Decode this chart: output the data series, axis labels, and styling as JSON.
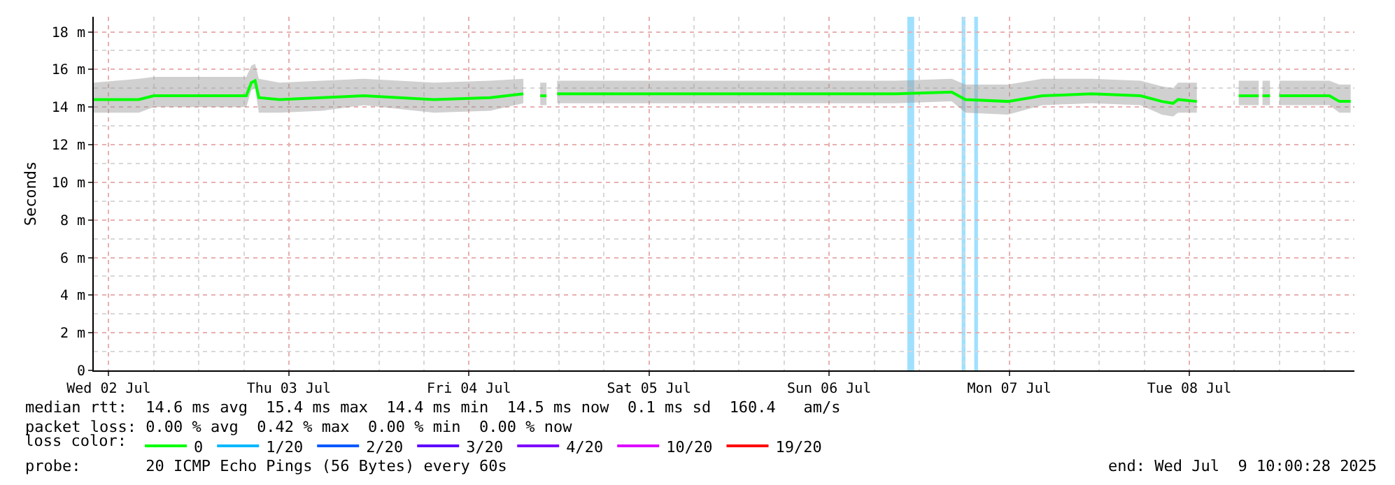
{
  "chart_data": {
    "type": "line",
    "ylabel": "Seconds",
    "x": [
      "2025-07-02T10:00",
      "2025-07-02T16:00",
      "2025-07-02T18:00",
      "2025-07-03T06:20",
      "2025-07-03T07:00",
      "2025-07-03T07:30",
      "2025-07-03T08:00",
      "2025-07-03T10:45",
      "2025-07-03T16:25",
      "2025-07-03T22:00",
      "2025-07-04T07:20",
      "2025-07-04T14:50",
      "2025-07-04T19:15",
      "2025-07-04T20:30",
      "2025-07-04T21:30",
      "2025-07-04T22:20",
      "2025-07-04T22:50",
      "2025-07-04T23:45",
      "2025-07-05T18:50",
      "2025-07-06T20:55",
      "2025-07-07T04:20",
      "2025-07-07T06:10",
      "2025-07-07T11:50",
      "2025-07-07T16:25",
      "2025-07-07T23:00",
      "2025-07-08T05:30",
      "2025-07-08T08:20",
      "2025-07-08T09:50",
      "2025-07-08T10:30",
      "2025-07-08T13:00",
      "2025-07-08T15:40",
      "2025-07-08T18:35",
      "2025-07-08T21:15",
      "2025-07-08T21:30",
      "2025-07-08T21:45",
      "2025-07-08T22:45",
      "2025-07-08T23:15",
      "2025-07-09T00:00",
      "2025-07-09T06:40",
      "2025-07-09T08:00",
      "2025-07-09T09:30"
    ],
    "series": [
      {
        "name": "0",
        "color": "#00ff00",
        "values": [
          14.4,
          14.4,
          14.6,
          14.6,
          15.3,
          15.4,
          14.5,
          14.4,
          14.5,
          14.6,
          14.4,
          14.5,
          14.7,
          null,
          14.6,
          14.6,
          null,
          14.7,
          14.7,
          14.7,
          14.8,
          14.4,
          14.3,
          14.6,
          14.7,
          14.6,
          14.3,
          14.2,
          14.4,
          14.3,
          null,
          14.6,
          14.6,
          null,
          14.6,
          14.6,
          null,
          14.6,
          14.6,
          14.3,
          14.3
        ],
        "lower": [
          13.7,
          13.7,
          14.0,
          14.0,
          14.9,
          15.0,
          13.7,
          13.7,
          13.8,
          14.1,
          13.7,
          13.8,
          14.2,
          null,
          14.1,
          14.1,
          null,
          14.2,
          14.2,
          14.2,
          14.3,
          13.7,
          13.6,
          14.1,
          14.2,
          14.1,
          13.6,
          13.5,
          13.7,
          13.7,
          null,
          14.1,
          14.1,
          null,
          14.1,
          14.1,
          null,
          14.1,
          14.1,
          13.7,
          13.7
        ],
        "upper": [
          15.3,
          15.5,
          15.6,
          15.6,
          16.2,
          16.3,
          15.5,
          15.3,
          15.4,
          15.5,
          15.3,
          15.4,
          15.5,
          null,
          15.3,
          15.3,
          null,
          15.4,
          15.4,
          15.4,
          15.5,
          15.2,
          15.2,
          15.5,
          15.5,
          15.4,
          15.1,
          15.0,
          15.3,
          15.3,
          null,
          15.4,
          15.4,
          null,
          15.4,
          15.4,
          null,
          15.4,
          15.4,
          15.2,
          15.2
        ]
      },
      {
        "name": "1/20",
        "color": "#00b8ff",
        "values": [
          null,
          null,
          null,
          null,
          null,
          null,
          null,
          null,
          null,
          null,
          null,
          null,
          null,
          null,
          null,
          null,
          null,
          null,
          null,
          null,
          null,
          null,
          null,
          null,
          null,
          null,
          null,
          null,
          null,
          null,
          null,
          null,
          null,
          null,
          null,
          null,
          null,
          null,
          null,
          null,
          null
        ]
      },
      {
        "name": "2/20",
        "color": "#0059ff",
        "values": [
          null,
          null,
          null,
          null,
          null,
          null,
          null,
          null,
          null,
          null,
          null,
          null,
          null,
          null,
          null,
          null,
          null,
          null,
          null,
          null,
          null,
          null,
          null,
          null,
          null,
          null,
          null,
          null,
          null,
          null,
          null,
          null,
          null,
          null,
          null,
          null,
          null,
          null,
          null,
          null,
          null
        ]
      },
      {
        "name": "3/20",
        "color": "#5e00ff",
        "values": [
          null,
          null,
          null,
          null,
          null,
          null,
          null,
          null,
          null,
          null,
          null,
          null,
          null,
          null,
          null,
          null,
          null,
          null,
          null,
          null,
          null,
          null,
          null,
          null,
          null,
          null,
          null,
          null,
          null,
          null,
          null,
          null,
          null,
          null,
          null,
          null,
          null,
          null,
          null,
          null,
          null
        ]
      },
      {
        "name": "4/20",
        "color": "#7e00ff",
        "values": [
          null,
          null,
          null,
          null,
          null,
          null,
          null,
          null,
          null,
          null,
          null,
          null,
          null,
          null,
          null,
          null,
          null,
          null,
          null,
          null,
          null,
          null,
          null,
          null,
          null,
          null,
          null,
          null,
          null,
          null,
          null,
          null,
          null,
          null,
          null,
          null,
          null,
          null,
          null,
          null,
          null
        ]
      },
      {
        "name": "10/20",
        "color": "#dd00ff",
        "values": [
          null,
          null,
          null,
          null,
          null,
          null,
          null,
          null,
          null,
          null,
          null,
          null,
          null,
          null,
          null,
          null,
          null,
          null,
          null,
          null,
          null,
          null,
          null,
          null,
          null,
          null,
          null,
          null,
          null,
          null,
          null,
          null,
          null,
          null,
          null,
          null,
          null,
          null,
          null,
          null,
          null
        ]
      },
      {
        "name": "19/20",
        "color": "#ff0000",
        "values": [
          null,
          null,
          null,
          null,
          null,
          null,
          null,
          null,
          null,
          null,
          null,
          null,
          null,
          null,
          null,
          null,
          null,
          null,
          null,
          null,
          null,
          null,
          null,
          null,
          null,
          null,
          null,
          null,
          null,
          null,
          null,
          null,
          null,
          null,
          null,
          null,
          null,
          null,
          null,
          null,
          null
        ]
      }
    ],
    "bands": [
      {
        "axis": "x",
        "from": "2025-07-06T22:25",
        "to": "2025-07-06T23:20",
        "label": null,
        "color": "#a0e0ff"
      },
      {
        "axis": "x",
        "from": "2025-07-07T05:40",
        "to": "2025-07-07T06:10",
        "label": null,
        "color": "#a0e0ff"
      },
      {
        "axis": "x",
        "from": "2025-07-07T07:20",
        "to": "2025-07-07T07:50",
        "label": null,
        "color": "#a0e0ff"
      }
    ],
    "xlim": [
      "2025-07-02T10:00",
      "2025-07-09T10:00"
    ],
    "xticks": [
      {
        "value": "2025-07-02T12:00",
        "label": "Wed 02 Jul"
      },
      {
        "value": "2025-07-03T12:00",
        "label": "Thu 03 Jul"
      },
      {
        "value": "2025-07-04T12:00",
        "label": "Fri 04 Jul"
      },
      {
        "value": "2025-07-05T12:00",
        "label": "Sat 05 Jul"
      },
      {
        "value": "2025-07-06T12:00",
        "label": "Sun 06 Jul"
      },
      {
        "value": "2025-07-07T12:00",
        "label": "Mon 07 Jul"
      },
      {
        "value": "2025-07-08T12:00",
        "label": "Tue 08 Jul"
      }
    ],
    "ylim": [
      0,
      18.8
    ],
    "yticks": [
      0,
      {
        "value": 2,
        "label": "2 m"
      },
      {
        "value": 4,
        "label": "4 m"
      },
      {
        "value": 6,
        "label": "6 m"
      },
      {
        "value": 8,
        "label": "8 m"
      },
      {
        "value": 10,
        "label": "10 m"
      },
      {
        "value": 12,
        "label": "12 m"
      },
      {
        "value": 14,
        "label": "14 m"
      },
      {
        "value": 16,
        "label": "16 m"
      },
      {
        "value": 18,
        "label": "18 m"
      }
    ],
    "grid": true,
    "legend": "bottom",
    "legend_title": "loss color:",
    "marker": "none",
    "line_style": "solid",
    "annotations": [
      "median rtt:  14.6 ms avg  15.4 ms max  14.4 ms min  14.5 ms now  0.1 ms sd  160.4   am/s",
      "packet loss: 0.00 % avg  0.42 % max  0.00 % min  0.00 % now",
      "probe:       20 ICMP Echo Pings (56 Bytes) every 60s",
      "end: Wed Jul  9 10:00:28 2025"
    ]
  }
}
